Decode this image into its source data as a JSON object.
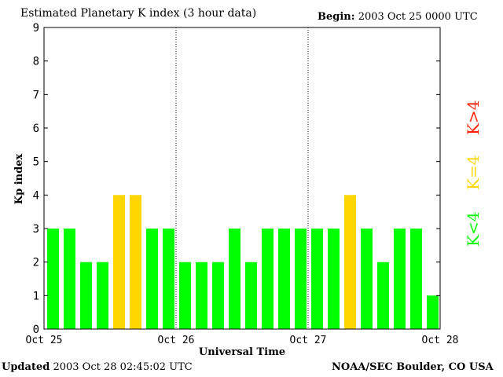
{
  "header": {
    "title": "Estimated Planetary K index (3 hour data)",
    "begin_label": "Begin:",
    "begin_value": "2003 Oct 25 0000 UTC"
  },
  "footer": {
    "updated_label": "Updated",
    "updated_value": "2003 Oct 28 02:45:02 UTC",
    "source": "NOAA/SEC Boulder, CO USA"
  },
  "legend": {
    "greater": "K>4",
    "equal": "K=4",
    "less": "K<4"
  },
  "colors": {
    "below_4": "#00ff00",
    "equal_4": "#ffd700",
    "above_4": "#ff2200"
  },
  "chart_data": {
    "type": "bar",
    "title": "Estimated Planetary K index (3 hour data)",
    "xlabel": "Universal Time",
    "ylabel": "Kp index",
    "ylim": [
      0,
      9
    ],
    "yticks": [
      0,
      1,
      2,
      3,
      4,
      5,
      6,
      7,
      8,
      9
    ],
    "xtick_labels": [
      "Oct 25",
      "Oct 26",
      "Oct 27",
      "Oct 28"
    ],
    "interval_hours": 3,
    "values": [
      3,
      3,
      2,
      2,
      4,
      4,
      3,
      3,
      2,
      2,
      2,
      3,
      2,
      3,
      3,
      3,
      3,
      3,
      4,
      3,
      2,
      3,
      3,
      1
    ]
  }
}
